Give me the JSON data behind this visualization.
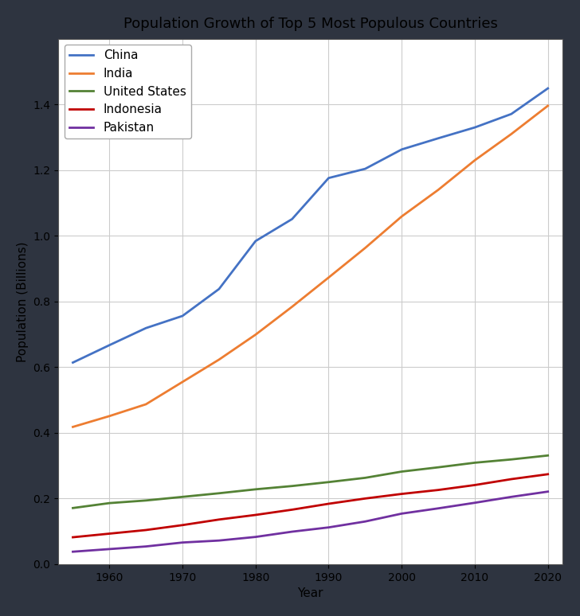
{
  "title": "Population Growth of Top 5 Most Populous Countries",
  "xlabel": "Year",
  "ylabel": "Population (Billions)",
  "background_color": "#2e3440",
  "plot_bg_color": "#ffffff",
  "grid_color": "#cccccc",
  "countries": [
    "China",
    "India",
    "United States",
    "Indonesia",
    "Pakistan"
  ],
  "colors": [
    "#4472c4",
    "#ed7d31",
    "#548235",
    "#c00000",
    "#7030a0"
  ],
  "years": [
    1955,
    1960,
    1965,
    1970,
    1975,
    1980,
    1985,
    1990,
    1995,
    2000,
    2005,
    2010,
    2015,
    2020
  ],
  "population": {
    "China": [
      0.614,
      0.667,
      0.719,
      0.756,
      0.838,
      0.984,
      1.051,
      1.176,
      1.204,
      1.263,
      1.297,
      1.33,
      1.371,
      1.449
    ],
    "India": [
      0.418,
      0.451,
      0.487,
      0.555,
      0.623,
      0.699,
      0.784,
      0.873,
      0.963,
      1.059,
      1.14,
      1.23,
      1.31,
      1.396
    ],
    "United States": [
      0.171,
      0.186,
      0.194,
      0.205,
      0.216,
      0.228,
      0.238,
      0.25,
      0.263,
      0.282,
      0.295,
      0.309,
      0.319,
      0.331
    ],
    "Indonesia": [
      0.082,
      0.093,
      0.104,
      0.119,
      0.136,
      0.15,
      0.166,
      0.184,
      0.2,
      0.214,
      0.226,
      0.241,
      0.259,
      0.274
    ],
    "Pakistan": [
      0.038,
      0.046,
      0.054,
      0.066,
      0.072,
      0.083,
      0.099,
      0.112,
      0.13,
      0.154,
      0.17,
      0.187,
      0.205,
      0.221
    ]
  },
  "ylim": [
    0.0,
    1.6
  ],
  "yticks": [
    0.0,
    0.2,
    0.4,
    0.6,
    0.8,
    1.0,
    1.2,
    1.4
  ],
  "xticks": [
    1960,
    1970,
    1980,
    1990,
    2000,
    2010,
    2020
  ],
  "linewidth": 2.0,
  "legend_fontsize": 11,
  "title_fontsize": 13,
  "axis_label_fontsize": 11,
  "tick_fontsize": 10
}
